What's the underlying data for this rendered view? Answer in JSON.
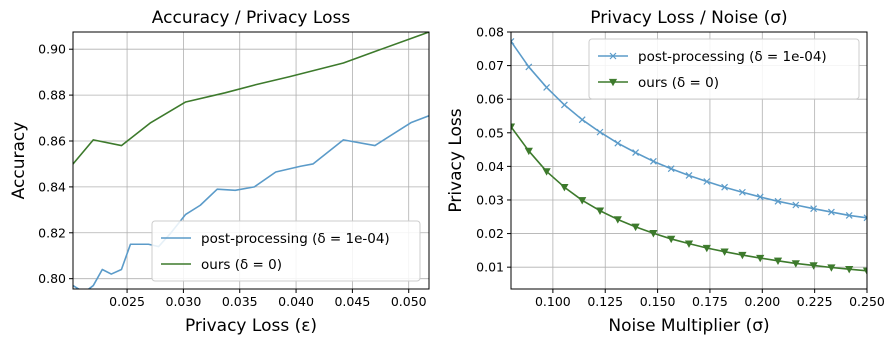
{
  "chart_data": [
    {
      "type": "line",
      "title": "Accuracy / Privacy Loss",
      "xlabel": "Privacy Loss (ε)",
      "ylabel": "Accuracy",
      "xlim": [
        0.0202,
        0.0518
      ],
      "ylim": [
        0.7955,
        0.9075
      ],
      "xticks": [
        0.025,
        0.03,
        0.035,
        0.04,
        0.045,
        0.05
      ],
      "xtick_labels": [
        "0.025",
        "0.030",
        "0.035",
        "0.040",
        "0.045",
        "0.050"
      ],
      "yticks": [
        0.8,
        0.82,
        0.84,
        0.86,
        0.88,
        0.9
      ],
      "ytick_labels": [
        "0.80",
        "0.82",
        "0.84",
        "0.86",
        "0.88",
        "0.90"
      ],
      "grid": true,
      "legend_position": "lower-right",
      "series": [
        {
          "name": "post-processing (δ = 1e-04)",
          "color": "#5b9bc9",
          "marker": "none",
          "x": [
            0.0202,
            0.0212,
            0.022,
            0.0228,
            0.0236,
            0.0245,
            0.0253,
            0.0261,
            0.0269,
            0.0278,
            0.0289,
            0.0302,
            0.0315,
            0.033,
            0.0346,
            0.0363,
            0.0382,
            0.0404,
            0.0415,
            0.0442,
            0.047,
            0.0502,
            0.0518
          ],
          "y": [
            0.797,
            0.794,
            0.797,
            0.804,
            0.802,
            0.804,
            0.815,
            0.815,
            0.815,
            0.814,
            0.82,
            0.828,
            0.832,
            0.839,
            0.8385,
            0.84,
            0.8465,
            0.849,
            0.85,
            0.8605,
            0.858,
            0.868,
            0.871
          ]
        },
        {
          "name": "ours (δ = 0)",
          "color": "#3d7a2c",
          "marker": "none",
          "x": [
            0.0202,
            0.022,
            0.0245,
            0.0271,
            0.0302,
            0.0337,
            0.0364,
            0.0394,
            0.0442,
            0.047,
            0.0518
          ],
          "y": [
            0.85,
            0.8605,
            0.858,
            0.868,
            0.877,
            0.881,
            0.8845,
            0.888,
            0.894,
            0.899,
            0.9075
          ]
        }
      ]
    },
    {
      "type": "line",
      "title": "Privacy Loss / Noise (σ)",
      "xlabel": "Noise Multiplier (σ)",
      "ylabel": "Privacy Loss",
      "xlim": [
        0.08,
        0.25
      ],
      "ylim": [
        0.0035,
        0.08
      ],
      "xticks": [
        0.1,
        0.125,
        0.15,
        0.175,
        0.2,
        0.225,
        0.25
      ],
      "xtick_labels": [
        "0.100",
        "0.125",
        "0.150",
        "0.175",
        "0.200",
        "0.225",
        "0.250"
      ],
      "yticks": [
        0.01,
        0.02,
        0.03,
        0.04,
        0.05,
        0.06,
        0.07,
        0.08
      ],
      "ytick_labels": [
        "0.01",
        "0.02",
        "0.03",
        "0.04",
        "0.05",
        "0.06",
        "0.07",
        "0.08"
      ],
      "grid": true,
      "legend_position": "top-right",
      "series": [
        {
          "name": "post-processing (δ = 1e-04)",
          "color": "#5b9bc9",
          "marker": "x",
          "x": [
            0.08,
            0.0885,
            0.097,
            0.1055,
            0.114,
            0.1225,
            0.131,
            0.1395,
            0.148,
            0.1565,
            0.165,
            0.1735,
            0.182,
            0.1905,
            0.199,
            0.2075,
            0.216,
            0.2245,
            0.233,
            0.2415,
            0.25
          ],
          "y": [
            0.0772,
            0.0696,
            0.0635,
            0.0583,
            0.0539,
            0.0502,
            0.0469,
            0.0441,
            0.0415,
            0.0393,
            0.0373,
            0.0355,
            0.0338,
            0.0323,
            0.0309,
            0.0296,
            0.0285,
            0.0274,
            0.0264,
            0.0254,
            0.0247
          ]
        },
        {
          "name": "ours (δ = 0)",
          "color": "#3d7a2c",
          "marker": "triangle-down",
          "x": [
            0.08,
            0.0885,
            0.097,
            0.1055,
            0.114,
            0.1225,
            0.131,
            0.1395,
            0.148,
            0.1565,
            0.165,
            0.1735,
            0.182,
            0.1905,
            0.199,
            0.2075,
            0.216,
            0.2245,
            0.233,
            0.2415,
            0.25
          ],
          "y": [
            0.0518,
            0.0446,
            0.0385,
            0.0338,
            0.0299,
            0.0268,
            0.0242,
            0.022,
            0.0201,
            0.0184,
            0.017,
            0.0157,
            0.0146,
            0.0136,
            0.0127,
            0.0119,
            0.0111,
            0.0105,
            0.0099,
            0.0094,
            0.0089
          ]
        }
      ]
    }
  ]
}
